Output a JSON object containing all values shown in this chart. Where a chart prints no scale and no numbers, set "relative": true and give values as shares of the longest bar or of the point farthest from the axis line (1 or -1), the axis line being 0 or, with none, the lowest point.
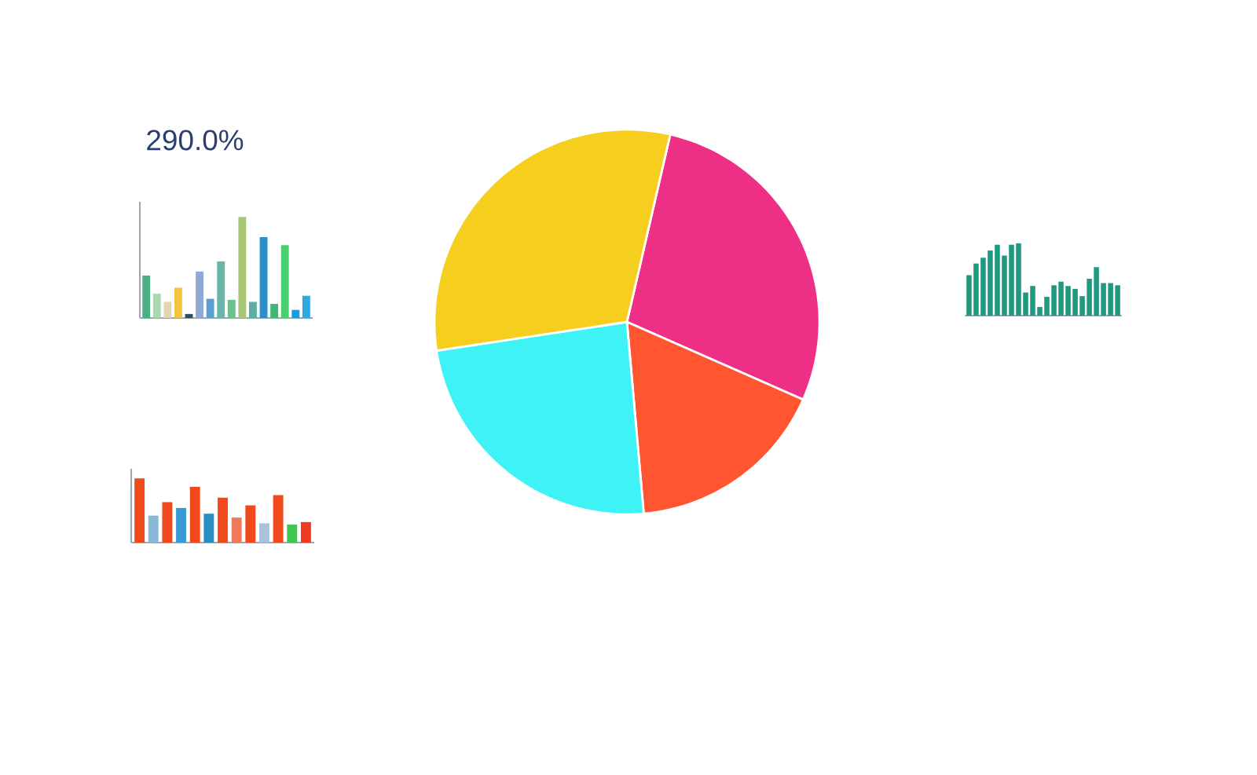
{
  "chart_data": [
    {
      "type": "bar",
      "title": "290.0%",
      "relative": true,
      "categories": [
        null,
        null,
        null,
        null,
        null,
        null,
        null,
        null,
        null,
        null,
        null,
        null,
        null,
        null,
        null,
        null
      ],
      "values": [
        0.42,
        0.24,
        0.16,
        0.3,
        0.04,
        0.46,
        0.19,
        0.56,
        0.18,
        1,
        0.16,
        0.8,
        0.14,
        0.72,
        0.08,
        0.22
      ],
      "colors": [
        "#4caf82",
        "#a8d8b0",
        "#e0d6b0",
        "#f5c242",
        "#2f4f5f",
        "#8fa8d8",
        "#5a9fd0",
        "#6bb5a8",
        "#6cc08a",
        "#a8c878",
        "#5ab0a0",
        "#2a8fc8",
        "#3cb870",
        "#48d070",
        "#1a9ae0",
        "#30a8e0"
      ]
    },
    {
      "type": "pie",
      "categories": [
        null,
        null,
        null,
        null
      ],
      "values": [
        28,
        17,
        24,
        31
      ],
      "colors": [
        "#ee2f86",
        "#ff5530",
        "#3ef2f6",
        "#f6cf1e"
      ]
    },
    {
      "type": "bar",
      "relative": true,
      "categories": [
        null,
        null,
        null,
        null,
        null,
        null,
        null,
        null,
        null,
        null,
        null,
        null,
        null,
        null,
        null,
        null,
        null,
        null,
        null,
        null,
        null,
        null
      ],
      "values": [
        0.56,
        0.72,
        0.8,
        0.9,
        0.98,
        0.83,
        0.98,
        1,
        0.32,
        0.41,
        0.12,
        0.26,
        0.42,
        0.47,
        0.41,
        0.37,
        0.27,
        0.51,
        0.67,
        0.45,
        0.45,
        0.42
      ],
      "color": "#1f9a80"
    },
    {
      "type": "bar",
      "relative": true,
      "categories": [
        null,
        null,
        null,
        null,
        null,
        null,
        null,
        null,
        null,
        null,
        null,
        null,
        null
      ],
      "values": [
        1,
        0.42,
        0.63,
        0.54,
        0.87,
        0.45,
        0.7,
        0.39,
        0.58,
        0.3,
        0.74,
        0.28,
        0.32
      ],
      "colors": [
        "#f04a1c",
        "#8ab8d8",
        "#f04a1c",
        "#3a9ad8",
        "#f04a1c",
        "#2a8fc0",
        "#f04a1c",
        "#f07a58",
        "#f04a1c",
        "#a8c4dc",
        "#f04a1c",
        "#3cc850",
        "#f03a20"
      ]
    }
  ]
}
